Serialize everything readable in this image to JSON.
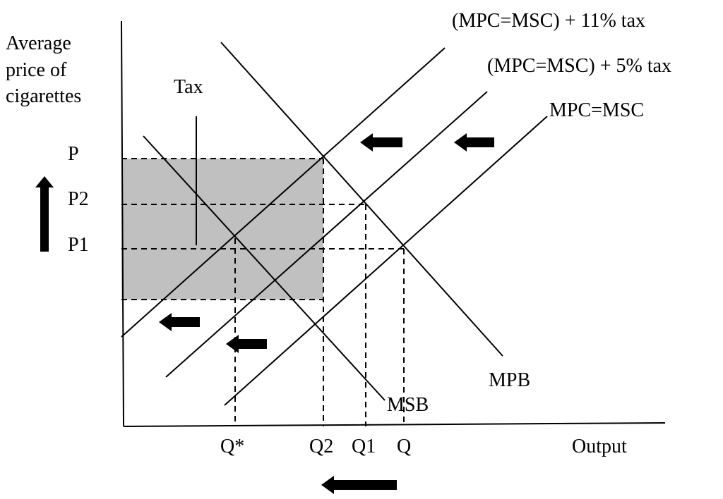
{
  "y_axis_label": [
    "Average",
    "price of",
    "cigarettes"
  ],
  "x_axis_label": "Output",
  "curves": {
    "tax_11": "(MPC=MSC) + 11% tax",
    "tax_5": "(MPC=MSC) + 5% tax",
    "supply": "MPC=MSC",
    "mpb": "MPB",
    "msb": "MSB"
  },
  "tax_label": "Tax",
  "price_labels": [
    "P",
    "P2",
    "P1"
  ],
  "quantity_labels": [
    "Q*",
    "Q2",
    "Q1",
    "Q"
  ]
}
